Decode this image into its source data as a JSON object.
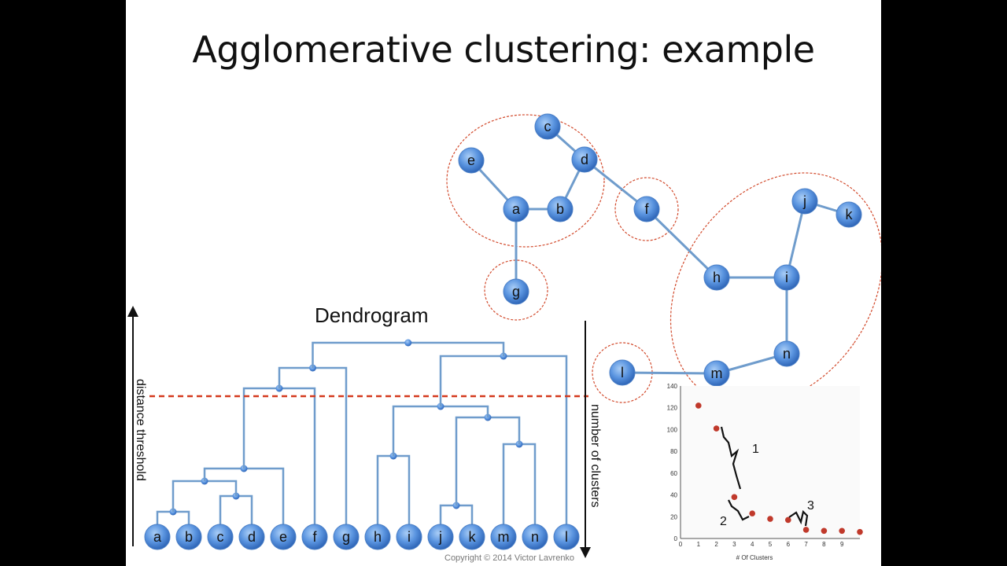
{
  "slide": {
    "title": "Agglomerative clustering: example",
    "dendrogram_title": "Dendrogram",
    "left_axis_label": "distance threshold",
    "right_axis_label": "number of clusters",
    "copyright": "Copyright © 2014 Victor Lavrenko"
  },
  "graph": {
    "nodes": [
      "a",
      "b",
      "c",
      "d",
      "e",
      "f",
      "g",
      "h",
      "i",
      "j",
      "k",
      "l",
      "m",
      "n"
    ],
    "edges": [
      [
        "a",
        "e"
      ],
      [
        "a",
        "b"
      ],
      [
        "b",
        "d"
      ],
      [
        "c",
        "d"
      ],
      [
        "d",
        "f"
      ],
      [
        "a",
        "g"
      ],
      [
        "f",
        "h"
      ],
      [
        "h",
        "i"
      ],
      [
        "i",
        "j"
      ],
      [
        "j",
        "k"
      ],
      [
        "i",
        "n"
      ],
      [
        "n",
        "m"
      ],
      [
        "m",
        "l"
      ]
    ],
    "clusters": [
      [
        "a",
        "b",
        "c",
        "d",
        "e"
      ],
      [
        "f"
      ],
      [
        "g"
      ],
      [
        "h",
        "i",
        "j",
        "k",
        "m",
        "n"
      ],
      [
        "l"
      ]
    ]
  },
  "dendrogram": {
    "leaves": [
      "a",
      "b",
      "c",
      "d",
      "e",
      "f",
      "g",
      "h",
      "i",
      "j",
      "k",
      "m",
      "n",
      "l"
    ],
    "merges": [
      [
        "a",
        "b"
      ],
      [
        "c",
        "d"
      ],
      [
        "ab",
        "cd"
      ],
      [
        "abcd",
        "e"
      ],
      [
        "j",
        "k"
      ],
      [
        "h",
        "i"
      ],
      [
        "m",
        "n"
      ],
      [
        "jk",
        "mn"
      ],
      [
        "hi",
        "jkmn"
      ],
      [
        "abcde",
        "f"
      ],
      [
        "abcdef",
        "g"
      ],
      [
        "hijkmn",
        "l"
      ],
      [
        "abcdefg",
        "hijkmnl"
      ]
    ]
  },
  "chart_data": {
    "type": "scatter",
    "xlabel": "# Of Clusters",
    "ylabel": "",
    "xlim": [
      0,
      10
    ],
    "ylim": [
      0,
      140
    ],
    "xticks": [
      0,
      1,
      2,
      3,
      4,
      5,
      6,
      7,
      8,
      9
    ],
    "yticks": [
      0,
      20,
      40,
      60,
      80,
      100,
      120,
      140
    ],
    "x": [
      1,
      2,
      3,
      4,
      5,
      6,
      7,
      8,
      9,
      10
    ],
    "y": [
      122,
      101,
      38,
      23,
      18,
      17,
      8,
      7,
      7,
      6
    ],
    "annotations": [
      "1",
      "2",
      "3"
    ],
    "color": "#c0392b"
  },
  "colors": {
    "node_fill": "#5b95e0",
    "edge": "#6f9ccc",
    "cluster_outline": "#d24a2c",
    "threshold": "#d43a1e"
  }
}
